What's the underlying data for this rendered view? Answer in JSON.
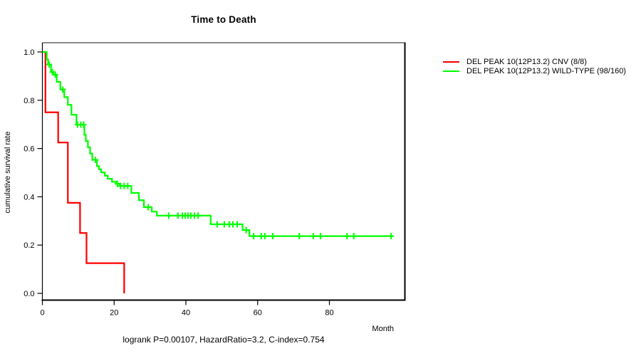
{
  "title": "Time to Death",
  "chart_data": {
    "type": "line",
    "subtype": "kaplan-meier-step",
    "title": "Time to Death",
    "xlabel": "Month",
    "ylabel": "cumulative survival rate",
    "xlim": [
      0,
      101
    ],
    "ylim": [
      0.0,
      1.0
    ],
    "x_ticks": [
      0,
      20,
      40,
      60,
      80
    ],
    "y_ticks": [
      0.0,
      0.2,
      0.4,
      0.6,
      0.8,
      1.0
    ],
    "grid": false,
    "legend_position": "right-outside",
    "annotation": "logrank P=0.00107, HazardRatio=3.2, C-index=0.754",
    "series": [
      {
        "name": "DEL PEAK 10(12P13.2) CNV (8/8)",
        "color": "#ff0000",
        "steps": [
          [
            0,
            1.0
          ],
          [
            0.85,
            0.75
          ],
          [
            4.4,
            0.625
          ],
          [
            7.1,
            0.375
          ],
          [
            10.5,
            0.25
          ],
          [
            12.3,
            0.125
          ],
          [
            22.8,
            0.0
          ]
        ],
        "end_month": 22.8,
        "censors": []
      },
      {
        "name": "DEL PEAK 10(12P13.2) WILD-TYPE (98/160)",
        "color": "#00ff00",
        "steps": [
          [
            0,
            1.0
          ],
          [
            1.2,
            0.969
          ],
          [
            1.6,
            0.948
          ],
          [
            2.4,
            0.917
          ],
          [
            3.0,
            0.906
          ],
          [
            4.0,
            0.876
          ],
          [
            5.0,
            0.844
          ],
          [
            6.1,
            0.813
          ],
          [
            7.1,
            0.781
          ],
          [
            8.1,
            0.74
          ],
          [
            9.5,
            0.699
          ],
          [
            11.7,
            0.657
          ],
          [
            12.1,
            0.631
          ],
          [
            12.7,
            0.605
          ],
          [
            13.3,
            0.579
          ],
          [
            13.9,
            0.553
          ],
          [
            15.2,
            0.527
          ],
          [
            15.8,
            0.514
          ],
          [
            16.4,
            0.501
          ],
          [
            17.4,
            0.488
          ],
          [
            18.2,
            0.475
          ],
          [
            19.4,
            0.462
          ],
          [
            20.8,
            0.454
          ],
          [
            21.6,
            0.445
          ],
          [
            24.8,
            0.416
          ],
          [
            26.9,
            0.386
          ],
          [
            28.3,
            0.357
          ],
          [
            30.5,
            0.339
          ],
          [
            31.9,
            0.322
          ],
          [
            46.9,
            0.286
          ],
          [
            55.8,
            0.262
          ],
          [
            57.7,
            0.237
          ]
        ],
        "end_month": 97.2,
        "censors": [
          [
            1.9,
            0.948
          ],
          [
            2.8,
            0.917
          ],
          [
            3.6,
            0.906
          ],
          [
            5.7,
            0.844
          ],
          [
            9.8,
            0.699
          ],
          [
            10.7,
            0.699
          ],
          [
            11.5,
            0.699
          ],
          [
            14.8,
            0.553
          ],
          [
            20.9,
            0.454
          ],
          [
            21.8,
            0.445
          ],
          [
            22.8,
            0.445
          ],
          [
            23.8,
            0.445
          ],
          [
            29.5,
            0.357
          ],
          [
            35.2,
            0.322
          ],
          [
            37.8,
            0.322
          ],
          [
            39.0,
            0.322
          ],
          [
            39.8,
            0.322
          ],
          [
            40.6,
            0.322
          ],
          [
            41.4,
            0.322
          ],
          [
            42.4,
            0.322
          ],
          [
            43.4,
            0.322
          ],
          [
            48.7,
            0.286
          ],
          [
            50.7,
            0.286
          ],
          [
            52.1,
            0.286
          ],
          [
            53.1,
            0.286
          ],
          [
            54.3,
            0.286
          ],
          [
            56.8,
            0.262
          ],
          [
            58.9,
            0.237
          ],
          [
            61.0,
            0.237
          ],
          [
            62.0,
            0.237
          ],
          [
            64.2,
            0.237
          ],
          [
            71.6,
            0.237
          ],
          [
            75.5,
            0.237
          ],
          [
            77.5,
            0.237
          ],
          [
            84.9,
            0.237
          ],
          [
            86.8,
            0.237
          ],
          [
            97.2,
            0.237
          ]
        ]
      }
    ],
    "colors": {
      "axis": "#000000",
      "box_top": "#8a8a8a",
      "text": "#000000",
      "background": "#ffffff"
    }
  }
}
